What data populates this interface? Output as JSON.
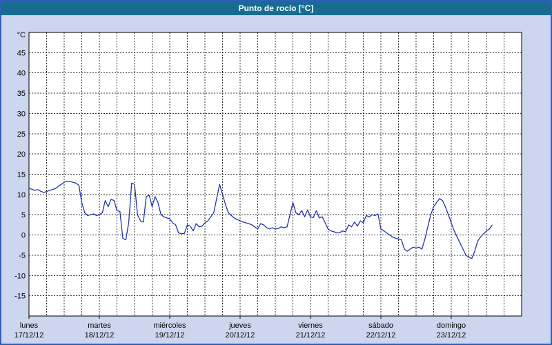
{
  "window": {
    "title": "Punto de rocío [°C]"
  },
  "colors": {
    "page_bg": "#ccd6ee",
    "window_border": "#2e5eb8",
    "header_bg": "#176d91",
    "header_text": "#ffffff",
    "plot_bg": "#ffffff",
    "grid": "#333333",
    "axis_text": "#000000",
    "line": "#2233aa"
  },
  "chart_data": {
    "type": "line",
    "title": "Punto de rocío [°C]",
    "legend": "none",
    "grid": {
      "dashed": true,
      "horizontal": true,
      "vertical": true
    },
    "y_axis": {
      "unit_label": "°C",
      "min": -20,
      "max": 50,
      "tick_min": -15,
      "tick_max": 45,
      "tick_step": 5
    },
    "x_axis": {
      "total_hours": 168,
      "grid_interval_hours": 6,
      "days": [
        {
          "name": "lunes",
          "date": "17/12/12"
        },
        {
          "name": "martes",
          "date": "18/12/12"
        },
        {
          "name": "miércoles",
          "date": "19/12/12"
        },
        {
          "name": "jueves",
          "date": "20/12/12"
        },
        {
          "name": "viernes",
          "date": "21/12/12"
        },
        {
          "name": "sábado",
          "date": "22/12/12"
        },
        {
          "name": "domingo",
          "date": "23/12/12"
        }
      ]
    },
    "series": [
      {
        "name": "Punto de rocío",
        "color": "#2233aa",
        "interval_hours": 1,
        "start": "lunes 17/12/12 00:00",
        "values": [
          11.5,
          11.3,
          11.0,
          11.2,
          10.8,
          10.5,
          10.7,
          11.0,
          11.2,
          11.5,
          12.0,
          12.5,
          13.0,
          13.3,
          13.2,
          13.0,
          12.8,
          12.3,
          8.0,
          5.5,
          4.8,
          5.0,
          5.2,
          4.8,
          5.0,
          5.5,
          8.5,
          7.0,
          8.8,
          8.5,
          6.0,
          5.8,
          -0.8,
          -1.2,
          3.0,
          12.8,
          12.5,
          5.0,
          3.5,
          3.2,
          9.5,
          9.8,
          7.0,
          9.5,
          8.0,
          5.0,
          4.5,
          4.2,
          4.0,
          3.0,
          2.5,
          0.5,
          0.3,
          0.4,
          2.5,
          2.2,
          1.0,
          2.8,
          2.0,
          2.2,
          3.0,
          3.5,
          4.5,
          5.5,
          9.0,
          12.5,
          10.0,
          7.5,
          5.5,
          4.8,
          4.2,
          3.8,
          3.5,
          3.2,
          3.0,
          2.8,
          2.5,
          2.0,
          1.5,
          2.8,
          2.5,
          1.8,
          1.5,
          1.8,
          1.5,
          1.6,
          2.0,
          1.8,
          2.0,
          5.0,
          8.0,
          5.5,
          5.0,
          6.0,
          4.5,
          6.2,
          4.5,
          4.3,
          6.0,
          4.2,
          4.5,
          3.0,
          1.5,
          1.0,
          0.8,
          0.5,
          0.6,
          1.0,
          0.8,
          2.5,
          2.0,
          3.2,
          2.2,
          3.5,
          3.0,
          4.8,
          4.5,
          5.0,
          4.8,
          5.2,
          1.5,
          1.0,
          0.5,
          0.0,
          -0.5,
          -0.8,
          -1.0,
          -1.2,
          -3.5,
          -4.0,
          -3.5,
          -3.0,
          -3.2,
          -3.0,
          -3.5,
          -1.0,
          2.0,
          5.0,
          7.0,
          8.0,
          9.0,
          8.5,
          7.0,
          5.0,
          3.0,
          1.0,
          -0.5,
          -2.0,
          -3.5,
          -5.0,
          -5.5,
          -5.8,
          -4.0,
          -1.5,
          -0.5,
          0.3,
          1.0,
          1.5,
          2.5
        ]
      }
    ]
  }
}
